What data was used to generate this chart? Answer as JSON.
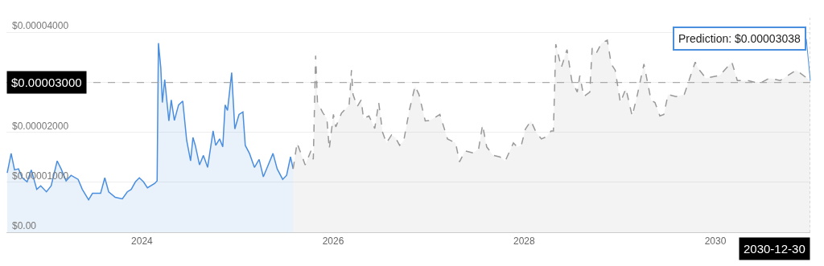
{
  "chart_data": {
    "type": "area",
    "xlim": [
      "2022-08-01",
      "2030-12-30"
    ],
    "ylim": [
      0,
      4.3e-05
    ],
    "xticks": [
      {
        "value": "2024-01-01",
        "label": "2024"
      },
      {
        "value": "2026-01-01",
        "label": "2026"
      },
      {
        "value": "2028-01-01",
        "label": "2028"
      },
      {
        "value": "2030-01-01",
        "label": "2030"
      }
    ],
    "yticks": [
      {
        "value": 0,
        "label": "$0.00"
      },
      {
        "value": 1e-05,
        "label": "$0.00001000"
      },
      {
        "value": 2e-05,
        "label": "$0.00002000"
      },
      {
        "value": 3e-05,
        "label": null
      },
      {
        "value": 4e-05,
        "label": "$0.00004000"
      }
    ],
    "grid": "y",
    "series": [
      {
        "color": "#4a8ee0",
        "line_style": "solid",
        "x": [
          "2022-08-04",
          "2022-08-19",
          "2022-09-01",
          "2022-09-16",
          "2022-10-01",
          "2022-10-19",
          "2022-11-04",
          "2022-11-25",
          "2022-12-10",
          "2023-01-01",
          "2023-01-19",
          "2023-02-11",
          "2023-02-26",
          "2023-03-17",
          "2023-04-05",
          "2023-05-02",
          "2023-05-18",
          "2023-06-11",
          "2023-06-26",
          "2023-07-27",
          "2023-08-12",
          "2023-08-27",
          "2023-09-21",
          "2023-10-18",
          "2023-11-06",
          "2023-11-21",
          "2023-12-07",
          "2023-12-22",
          "2024-01-07",
          "2024-01-22",
          "2024-02-19",
          "2024-02-28",
          "2024-03-04",
          "2024-03-13",
          "2024-03-19",
          "2024-03-28",
          "2024-04-13",
          "2024-04-22",
          "2024-05-04",
          "2024-05-20",
          "2024-06-05",
          "2024-06-20",
          "2024-07-05",
          "2024-07-14",
          "2024-07-23",
          "2024-08-08",
          "2024-08-23",
          "2024-09-08",
          "2024-09-29",
          "2024-10-09",
          "2024-10-24",
          "2024-11-05",
          "2024-11-14",
          "2024-11-23",
          "2024-12-09",
          "2024-12-21",
          "2025-01-06",
          "2025-01-21",
          "2025-01-30",
          "2025-02-15",
          "2025-03-06",
          "2025-03-24",
          "2025-04-09",
          "2025-04-24",
          "2025-05-16",
          "2025-06-01",
          "2025-06-22",
          "2025-07-07",
          "2025-07-22",
          "2025-08-01"
        ],
        "values": [
          1.19e-05,
          1.58e-05,
          1.25e-05,
          1.27e-05,
          1.09e-05,
          1.01e-05,
          1.25e-05,
          8.6e-06,
          9.3e-06,
          8.1e-06,
          9.3e-06,
          1.43e-05,
          1.27e-05,
          1.03e-05,
          1.14e-05,
          1.06e-05,
          8.6e-06,
          6.5e-06,
          7.8e-06,
          7.8e-06,
          1.09e-05,
          8.1e-06,
          7e-06,
          6.7e-06,
          8.1e-06,
          8.6e-06,
          1.01e-05,
          1.09e-05,
          1.01e-05,
          8.9e-06,
          9.8e-06,
          1.03e-05,
          3.79e-05,
          3.3e-05,
          2.6e-05,
          3.06e-05,
          2.23e-05,
          2.65e-05,
          2.24e-05,
          2.55e-05,
          2.63e-05,
          1.84e-05,
          1.43e-05,
          1.9e-05,
          1.74e-05,
          1.35e-05,
          1.54e-05,
          1.3e-05,
          2.03e-05,
          1.74e-05,
          1.87e-05,
          1.71e-05,
          2.55e-05,
          2.44e-05,
          3.2e-05,
          2.07e-05,
          2.36e-05,
          2.41e-05,
          1.74e-05,
          1.58e-05,
          1.3e-05,
          1.46e-05,
          1.11e-05,
          1.3e-05,
          1.58e-05,
          1.27e-05,
          1.06e-05,
          1.14e-05,
          1.51e-05,
          1.27e-05
        ]
      },
      {
        "color": "#999999",
        "line_style": "dashed",
        "x": [
          "2025-08-01",
          "2025-08-16",
          "2025-09-16",
          "2025-10-08",
          "2025-10-17",
          "2025-10-26",
          "2025-11-02",
          "2025-11-23",
          "2025-12-08",
          "2025-12-17",
          "2026-01-02",
          "2026-01-11",
          "2026-02-02",
          "2026-02-17",
          "2026-03-03",
          "2026-03-12",
          "2026-03-18",
          "2026-04-03",
          "2026-04-18",
          "2026-04-27",
          "2026-05-18",
          "2026-06-09",
          "2026-06-24",
          "2026-07-09",
          "2026-07-24",
          "2026-08-12",
          "2026-08-27",
          "2026-09-12",
          "2026-09-28",
          "2026-10-19",
          "2026-11-10",
          "2026-11-25",
          "2026-12-19",
          "2027-01-04",
          "2027-01-28",
          "2027-02-13",
          "2027-03-14",
          "2027-04-14",
          "2027-04-29",
          "2027-05-20",
          "2027-06-20",
          "2027-07-11",
          "2027-07-26",
          "2027-08-11",
          "2027-09-05",
          "2027-09-30",
          "2027-10-21",
          "2027-11-21",
          "2027-12-06",
          "2027-12-21",
          "2028-01-06",
          "2028-01-27",
          "2028-02-16",
          "2028-03-07",
          "2028-03-28",
          "2028-04-13",
          "2028-04-22",
          "2028-05-01",
          "2028-05-22",
          "2028-06-13",
          "2028-07-01",
          "2028-07-22",
          "2028-08-01",
          "2028-08-16",
          "2028-09-08",
          "2028-09-17",
          "2028-10-02",
          "2028-10-23",
          "2028-11-14",
          "2028-11-29",
          "2028-12-14",
          "2029-01-03",
          "2029-01-24",
          "2029-02-17",
          "2029-03-09",
          "2029-04-03",
          "2029-04-30",
          "2029-05-15",
          "2029-06-03",
          "2029-06-18",
          "2029-07-04",
          "2029-08-04",
          "2029-09-04",
          "2029-10-16",
          "2029-10-25",
          "2029-11-25",
          "2030-01-17",
          "2030-03-05",
          "2030-03-26",
          "2030-05-05",
          "2030-06-18",
          "2030-07-27",
          "2030-09-06",
          "2030-11-06",
          "2030-12-30"
        ],
        "values": [
          1.27e-05,
          1.79e-05,
          1.35e-05,
          1.63e-05,
          1.46e-05,
          3.54e-05,
          2.6e-05,
          2.39e-05,
          2.28e-05,
          1.67e-05,
          2.36e-05,
          2.11e-05,
          2.39e-05,
          2.47e-05,
          2.55e-05,
          3.25e-05,
          2.76e-05,
          2.52e-05,
          2.65e-05,
          2.28e-05,
          2.33e-05,
          2.08e-05,
          2.6e-05,
          2e-05,
          1.79e-05,
          1.95e-05,
          1.9e-05,
          1.74e-05,
          1.84e-05,
          2.44e-05,
          2.93e-05,
          2.76e-05,
          2.23e-05,
          2.24e-05,
          2.31e-05,
          2.36e-05,
          1.87e-05,
          1.79e-05,
          1.41e-05,
          1.63e-05,
          1.59e-05,
          1.67e-05,
          2.15e-05,
          1.71e-05,
          1.54e-05,
          1.51e-05,
          1.43e-05,
          1.79e-05,
          1.71e-05,
          1.74e-05,
          2.07e-05,
          2.23e-05,
          2e-05,
          1.87e-05,
          1.92e-05,
          2.03e-05,
          2.03e-05,
          3.77e-05,
          3.3e-05,
          3.66e-05,
          3.04e-05,
          2.81e-05,
          3.14e-05,
          2.72e-05,
          2.81e-05,
          3.69e-05,
          3.58e-05,
          3.79e-05,
          3.85e-05,
          3.37e-05,
          3.25e-05,
          2.6e-05,
          2.88e-05,
          2.33e-05,
          2.76e-05,
          3.37e-05,
          2.65e-05,
          2.6e-05,
          2.33e-05,
          2.36e-05,
          2.76e-05,
          2.72e-05,
          2.76e-05,
          3.41e-05,
          3.3e-05,
          3.09e-05,
          3.14e-05,
          3.41e-05,
          3.04e-05,
          3.04e-05,
          2.98e-05,
          3.09e-05,
          3.04e-05,
          3.25e-05,
          3.038e-05
        ]
      }
    ],
    "ref_lines": [
      {
        "axis": "y",
        "value": 3e-05,
        "label": "$0.00003000",
        "color": "#999999",
        "line_style": "dashed"
      },
      {
        "axis": "x",
        "value": "2030-12-30",
        "label": "2030-12-30",
        "color": "#bbbbbb",
        "line_style": "dotted"
      }
    ],
    "annotations": [
      {
        "text": "Prediction: $0.00003038",
        "x": "2030-12-30",
        "y": 3.038e-05
      }
    ]
  }
}
